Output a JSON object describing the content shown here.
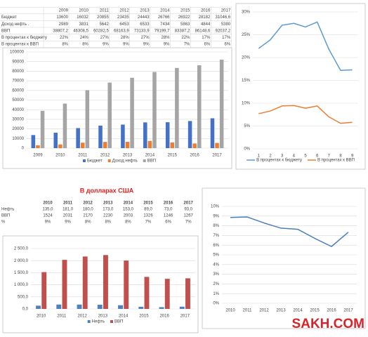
{
  "heading": "В долларах США",
  "watermark": "SAKH.COM",
  "tables": [
    {
      "columns": [
        "2009",
        "2010",
        "2011",
        "2012",
        "2013",
        "2014",
        "2015",
        "2016",
        "2017"
      ],
      "rows": [
        {
          "label": "Бюджет",
          "cells": [
            "13600",
            "16032",
            "20855",
            "23435",
            "24443",
            "26766",
            "26922",
            "28182",
            "31046,6"
          ]
        },
        {
          "label": "Доход нефть .",
          "cells": [
            "2989",
            "3831",
            "5642",
            "6453",
            "6533",
            "7434",
            "5863",
            "4844",
            "5380"
          ]
        },
        {
          "label": "ВВП",
          "cells": [
            "38807,2",
            "46308,5",
            "60282,5",
            "68163,9",
            "73133,9",
            "79199,7",
            "83387,2",
            "86148,6",
            "92037,2"
          ]
        },
        {
          "label": "В процентах к бюджету",
          "cells": [
            "22%",
            "24%",
            "27%",
            "28%",
            "27%",
            "28%",
            "22%",
            "17%",
            "17%"
          ]
        },
        {
          "label": "В процентах к ВВП",
          "cells": [
            "8%",
            "8%",
            "9%",
            "9%",
            "9%",
            "9%",
            "7%",
            "6%",
            "6%"
          ]
        }
      ]
    },
    {
      "columns": [
        "2010",
        "2011",
        "2012",
        "2013",
        "2014",
        "2015",
        "2016",
        "2017"
      ],
      "rows": [
        {
          "label": "Нефть",
          "cells": [
            "135,0",
            "181,0",
            "180,0",
            "173,0",
            "153,0",
            "89,0",
            "73,0",
            "93,0"
          ]
        },
        {
          "label": "ВВП",
          "cells": [
            "1524",
            "2031",
            "2170",
            "2230",
            "2003",
            "1326",
            "1246",
            "1267"
          ]
        },
        {
          "label": "%",
          "cells": [
            "9%",
            "9%",
            "8%",
            "8%",
            "8%",
            "7%",
            "6%",
            "7%"
          ]
        }
      ]
    }
  ],
  "chart_data": [
    {
      "type": "bar",
      "grid": true,
      "categories": [
        "2009",
        "2010",
        "2011",
        "2012",
        "2013",
        "2014",
        "2015",
        "2016",
        "2017"
      ],
      "series": [
        {
          "name": "Бюджет",
          "color": "#4472c4",
          "values": [
            13600,
            16032,
            20855,
            23435,
            24443,
            26766,
            26922,
            28182,
            31046.6
          ]
        },
        {
          "name": "Доход нефть",
          "color": "#ed7d31",
          "values": [
            2989,
            3831,
            5642,
            6453,
            6533,
            7434,
            5863,
            4844,
            5380
          ]
        },
        {
          "name": "ВВП",
          "color": "#a5a5a5",
          "values": [
            38807.2,
            46308.5,
            60282.5,
            68163.9,
            73133.9,
            79199.7,
            83387.2,
            86148.6,
            92037.2
          ]
        }
      ],
      "ylim": [
        0,
        100000
      ],
      "yticks": [
        0,
        10000,
        20000,
        30000,
        40000,
        50000,
        60000,
        70000,
        80000,
        90000,
        100000
      ]
    },
    {
      "type": "line",
      "grid": true,
      "categories": [
        "1",
        "2",
        "3",
        "4",
        "5",
        "6",
        "7",
        "8",
        "9"
      ],
      "series": [
        {
          "name": "В процентах к бюджету",
          "color": "#5b9bd5",
          "values": [
            22.0,
            23.9,
            27.1,
            27.5,
            26.7,
            27.8,
            21.8,
            17.2,
            17.3
          ]
        },
        {
          "name": "В процентах к ВВП",
          "color": "#ed7d31",
          "values": [
            7.7,
            8.3,
            9.4,
            9.5,
            8.9,
            9.4,
            7.0,
            5.6,
            5.8
          ]
        }
      ],
      "ylim": [
        0,
        30
      ],
      "yticks": [
        {
          "value": 0,
          "label": "0%"
        },
        {
          "value": 5,
          "label": "5%"
        },
        {
          "value": 10,
          "label": "10%"
        },
        {
          "value": 15,
          "label": "15%"
        },
        {
          "value": 20,
          "label": "20%"
        },
        {
          "value": 25,
          "label": "25%"
        },
        {
          "value": 30,
          "label": "30%"
        }
      ]
    },
    {
      "type": "bar",
      "grid": true,
      "categories": [
        "2010",
        "2011",
        "2012",
        "2013",
        "2014",
        "2015",
        "2016",
        "2017"
      ],
      "series": [
        {
          "name": "Нефть",
          "color": "#4f81bd",
          "values": [
            135,
            181,
            180,
            173,
            153,
            89,
            73,
            93
          ]
        },
        {
          "name": "ВВП",
          "color": "#c0504d",
          "values": [
            1524,
            2031,
            2170,
            2230,
            2003,
            1326,
            1246,
            1267
          ]
        }
      ],
      "ylim": [
        0,
        2500
      ],
      "yticks": [
        {
          "value": 0,
          "label": "0,0"
        },
        {
          "value": 500,
          "label": "500,0"
        },
        {
          "value": 1000,
          "label": "1 000,0"
        },
        {
          "value": 1500,
          "label": "1 500,0"
        },
        {
          "value": 2000,
          "label": "2 000,0"
        },
        {
          "value": 2500,
          "label": "2 500,0"
        }
      ]
    },
    {
      "type": "line",
      "grid": true,
      "categories": [
        "2010",
        "2011",
        "2012",
        "2013",
        "2014",
        "2015",
        "2016",
        "2017"
      ],
      "series": [
        {
          "color": "#4a7ebb",
          "values": [
            8.86,
            8.91,
            8.29,
            7.76,
            7.64,
            6.71,
            5.86,
            7.34
          ]
        }
      ],
      "ylim": [
        0,
        10
      ],
      "yticks": [
        {
          "value": 0,
          "label": "0%"
        },
        {
          "value": 1,
          "label": "1%"
        },
        {
          "value": 2,
          "label": "2%"
        },
        {
          "value": 3,
          "label": "3%"
        },
        {
          "value": 4,
          "label": "4%"
        },
        {
          "value": 5,
          "label": "5%"
        },
        {
          "value": 6,
          "label": "6%"
        },
        {
          "value": 7,
          "label": "7%"
        },
        {
          "value": 8,
          "label": "8%"
        },
        {
          "value": 9,
          "label": "9%"
        },
        {
          "value": 10,
          "label": "10%"
        }
      ]
    }
  ]
}
